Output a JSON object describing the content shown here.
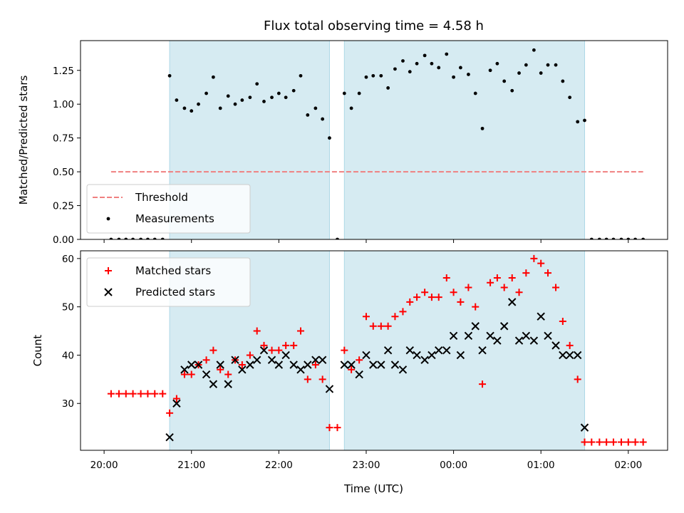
{
  "chart_data": {
    "type": "scatter",
    "title": "Flux total observing time = 4.58 h",
    "xlabel": "Time (UTC)",
    "x_unit": "hours",
    "xlim": [
      -0.27,
      6.45
    ],
    "xticks": [
      {
        "value": 0,
        "label": "20:00"
      },
      {
        "value": 1,
        "label": "21:00"
      },
      {
        "value": 2,
        "label": "22:00"
      },
      {
        "value": 3,
        "label": "23:00"
      },
      {
        "value": 4,
        "label": "00:00"
      },
      {
        "value": 5,
        "label": "01:00"
      },
      {
        "value": 6,
        "label": "02:00"
      }
    ],
    "observing_windows": [
      [
        0.75,
        2.58
      ],
      [
        2.75,
        5.5
      ]
    ],
    "window_color": "#add8e6",
    "panels": [
      {
        "ylabel": "Matched/Predicted stars",
        "ylim": [
          0,
          1.47
        ],
        "yticks": [
          {
            "value": 0,
            "label": "0.00"
          },
          {
            "value": 0.25,
            "label": "0.25"
          },
          {
            "value": 0.5,
            "label": "0.50"
          },
          {
            "value": 0.75,
            "label": "0.75"
          },
          {
            "value": 1.0,
            "label": "1.00"
          },
          {
            "value": 1.25,
            "label": "1.25"
          }
        ],
        "legend_position": "lower-left",
        "series": [
          {
            "name": "Threshold",
            "kind": "hline",
            "y": 0.5,
            "x_range": [
              0.08,
              6.17
            ],
            "color": "#f08080",
            "dash": true
          },
          {
            "name": "Measurements",
            "kind": "dots",
            "color": "#000000",
            "points": [
              [
                0.08,
                0
              ],
              [
                0.17,
                0
              ],
              [
                0.25,
                0
              ],
              [
                0.33,
                0
              ],
              [
                0.42,
                0
              ],
              [
                0.5,
                0
              ],
              [
                0.58,
                0
              ],
              [
                0.67,
                0
              ],
              [
                0.75,
                1.21
              ],
              [
                0.83,
                1.03
              ],
              [
                0.92,
                0.97
              ],
              [
                1.0,
                0.95
              ],
              [
                1.08,
                1.0
              ],
              [
                1.17,
                1.08
              ],
              [
                1.25,
                1.2
              ],
              [
                1.33,
                0.97
              ],
              [
                1.42,
                1.06
              ],
              [
                1.5,
                1.0
              ],
              [
                1.58,
                1.03
              ],
              [
                1.67,
                1.05
              ],
              [
                1.75,
                1.15
              ],
              [
                1.83,
                1.02
              ],
              [
                1.92,
                1.05
              ],
              [
                2.0,
                1.08
              ],
              [
                2.08,
                1.05
              ],
              [
                2.17,
                1.1
              ],
              [
                2.25,
                1.21
              ],
              [
                2.33,
                0.92
              ],
              [
                2.42,
                0.97
              ],
              [
                2.5,
                0.89
              ],
              [
                2.58,
                0.75
              ],
              [
                2.67,
                0
              ],
              [
                2.75,
                1.08
              ],
              [
                2.83,
                0.97
              ],
              [
                2.92,
                1.08
              ],
              [
                3.0,
                1.2
              ],
              [
                3.08,
                1.21
              ],
              [
                3.17,
                1.21
              ],
              [
                3.25,
                1.12
              ],
              [
                3.33,
                1.26
              ],
              [
                3.42,
                1.32
              ],
              [
                3.5,
                1.24
              ],
              [
                3.58,
                1.3
              ],
              [
                3.67,
                1.36
              ],
              [
                3.75,
                1.3
              ],
              [
                3.83,
                1.27
              ],
              [
                3.92,
                1.37
              ],
              [
                4.0,
                1.2
              ],
              [
                4.08,
                1.27
              ],
              [
                4.17,
                1.22
              ],
              [
                4.25,
                1.08
              ],
              [
                4.33,
                0.82
              ],
              [
                4.42,
                1.25
              ],
              [
                4.5,
                1.3
              ],
              [
                4.58,
                1.17
              ],
              [
                4.67,
                1.1
              ],
              [
                4.75,
                1.23
              ],
              [
                4.83,
                1.29
              ],
              [
                4.92,
                1.4
              ],
              [
                5.0,
                1.23
              ],
              [
                5.08,
                1.29
              ],
              [
                5.17,
                1.29
              ],
              [
                5.25,
                1.17
              ],
              [
                5.33,
                1.05
              ],
              [
                5.42,
                0.87
              ],
              [
                5.5,
                0.88
              ],
              [
                5.58,
                0
              ],
              [
                5.67,
                0
              ],
              [
                5.75,
                0
              ],
              [
                5.83,
                0
              ],
              [
                5.92,
                0
              ],
              [
                6.0,
                0
              ],
              [
                6.08,
                0
              ],
              [
                6.17,
                0
              ]
            ]
          }
        ]
      },
      {
        "ylabel": "Count",
        "ylim": [
          20.3,
          61.6
        ],
        "yticks": [
          {
            "value": 30,
            "label": "30"
          },
          {
            "value": 40,
            "label": "40"
          },
          {
            "value": 50,
            "label": "50"
          },
          {
            "value": 60,
            "label": "60"
          }
        ],
        "legend_position": "upper-left",
        "series": [
          {
            "name": "Matched stars",
            "kind": "plus",
            "color": "#ff0000",
            "points": [
              [
                0.08,
                32
              ],
              [
                0.17,
                32
              ],
              [
                0.25,
                32
              ],
              [
                0.33,
                32
              ],
              [
                0.42,
                32
              ],
              [
                0.5,
                32
              ],
              [
                0.58,
                32
              ],
              [
                0.67,
                32
              ],
              [
                0.75,
                28
              ],
              [
                0.83,
                31
              ],
              [
                0.92,
                36
              ],
              [
                1.0,
                36
              ],
              [
                1.08,
                38
              ],
              [
                1.17,
                39
              ],
              [
                1.25,
                41
              ],
              [
                1.33,
                37
              ],
              [
                1.42,
                36
              ],
              [
                1.5,
                39
              ],
              [
                1.58,
                38
              ],
              [
                1.67,
                40
              ],
              [
                1.75,
                45
              ],
              [
                1.83,
                42
              ],
              [
                1.92,
                41
              ],
              [
                2.0,
                41
              ],
              [
                2.08,
                42
              ],
              [
                2.17,
                42
              ],
              [
                2.25,
                45
              ],
              [
                2.33,
                35
              ],
              [
                2.42,
                38
              ],
              [
                2.5,
                35
              ],
              [
                2.58,
                25
              ],
              [
                2.67,
                25
              ],
              [
                2.75,
                41
              ],
              [
                2.83,
                37
              ],
              [
                2.92,
                39
              ],
              [
                3.0,
                48
              ],
              [
                3.08,
                46
              ],
              [
                3.17,
                46
              ],
              [
                3.25,
                46
              ],
              [
                3.33,
                48
              ],
              [
                3.42,
                49
              ],
              [
                3.5,
                51
              ],
              [
                3.58,
                52
              ],
              [
                3.67,
                53
              ],
              [
                3.75,
                52
              ],
              [
                3.83,
                52
              ],
              [
                3.92,
                56
              ],
              [
                4.0,
                53
              ],
              [
                4.08,
                51
              ],
              [
                4.17,
                54
              ],
              [
                4.25,
                50
              ],
              [
                4.33,
                34
              ],
              [
                4.42,
                55
              ],
              [
                4.5,
                56
              ],
              [
                4.58,
                54
              ],
              [
                4.67,
                56
              ],
              [
                4.75,
                53
              ],
              [
                4.83,
                57
              ],
              [
                4.92,
                60
              ],
              [
                5.0,
                59
              ],
              [
                5.08,
                57
              ],
              [
                5.17,
                54
              ],
              [
                5.25,
                47
              ],
              [
                5.33,
                42
              ],
              [
                5.42,
                35
              ],
              [
                5.5,
                22
              ],
              [
                5.58,
                22
              ],
              [
                5.67,
                22
              ],
              [
                5.75,
                22
              ],
              [
                5.83,
                22
              ],
              [
                5.92,
                22
              ],
              [
                6.0,
                22
              ],
              [
                6.08,
                22
              ],
              [
                6.17,
                22
              ]
            ]
          },
          {
            "name": "Predicted stars",
            "kind": "x",
            "color": "#000000",
            "points": [
              [
                0.75,
                23
              ],
              [
                0.83,
                30
              ],
              [
                0.92,
                37
              ],
              [
                1.0,
                38
              ],
              [
                1.08,
                38
              ],
              [
                1.17,
                36
              ],
              [
                1.25,
                34
              ],
              [
                1.33,
                38
              ],
              [
                1.42,
                34
              ],
              [
                1.5,
                39
              ],
              [
                1.58,
                37
              ],
              [
                1.67,
                38
              ],
              [
                1.75,
                39
              ],
              [
                1.83,
                41
              ],
              [
                1.92,
                39
              ],
              [
                2.0,
                38
              ],
              [
                2.08,
                40
              ],
              [
                2.17,
                38
              ],
              [
                2.25,
                37
              ],
              [
                2.33,
                38
              ],
              [
                2.42,
                39
              ],
              [
                2.5,
                39
              ],
              [
                2.58,
                33
              ],
              [
                2.75,
                38
              ],
              [
                2.83,
                38
              ],
              [
                2.92,
                36
              ],
              [
                3.0,
                40
              ],
              [
                3.08,
                38
              ],
              [
                3.17,
                38
              ],
              [
                3.25,
                41
              ],
              [
                3.33,
                38
              ],
              [
                3.42,
                37
              ],
              [
                3.5,
                41
              ],
              [
                3.58,
                40
              ],
              [
                3.67,
                39
              ],
              [
                3.75,
                40
              ],
              [
                3.83,
                41
              ],
              [
                3.92,
                41
              ],
              [
                4.0,
                44
              ],
              [
                4.08,
                40
              ],
              [
                4.17,
                44
              ],
              [
                4.25,
                46
              ],
              [
                4.33,
                41
              ],
              [
                4.42,
                44
              ],
              [
                4.5,
                43
              ],
              [
                4.58,
                46
              ],
              [
                4.67,
                51
              ],
              [
                4.75,
                43
              ],
              [
                4.83,
                44
              ],
              [
                4.92,
                43
              ],
              [
                5.0,
                48
              ],
              [
                5.08,
                44
              ],
              [
                5.17,
                42
              ],
              [
                5.25,
                40
              ],
              [
                5.33,
                40
              ],
              [
                5.42,
                40
              ],
              [
                5.5,
                25
              ]
            ]
          }
        ]
      }
    ]
  }
}
